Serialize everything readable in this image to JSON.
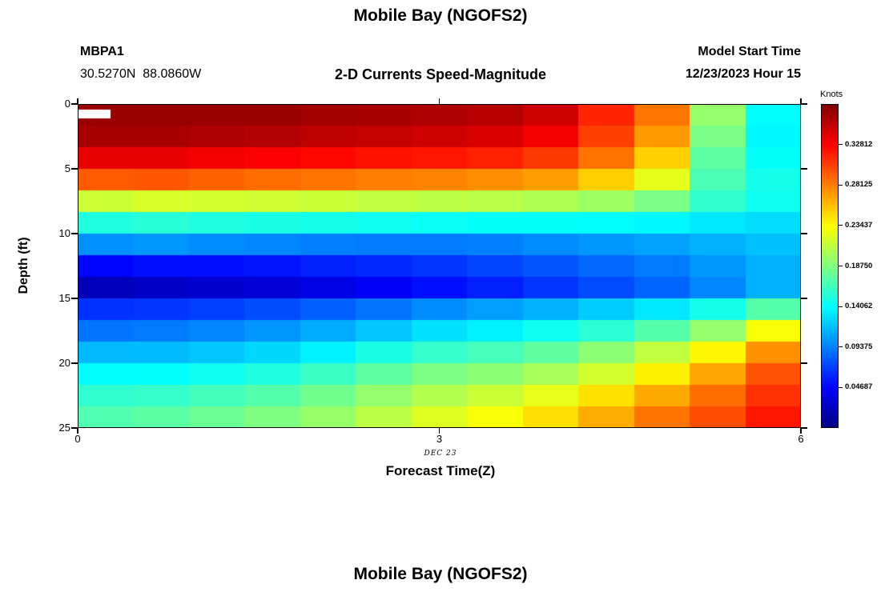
{
  "chart_data": {
    "type": "heatmap",
    "title": "Mobile Bay (NGOFS2)",
    "subtitle": "2-D Currents Speed-Magnitude",
    "station_id": "MBPA1",
    "station_coords": "30.5270N  88.0860W",
    "model_start_label": "Model Start Time",
    "model_start_value": "12/23/2023 Hour 15",
    "xlabel": "Forecast Time(Z)",
    "x_date_label": "DEC 23",
    "ylabel": "Depth (ft)",
    "x_range": [
      0,
      6
    ],
    "x_ticks": [
      0,
      3,
      6
    ],
    "x_hours": [
      0,
      0.5,
      1,
      1.5,
      2,
      2.5,
      3,
      3.5,
      4,
      4.5,
      5,
      5.5,
      6
    ],
    "depth_range": [
      0,
      25
    ],
    "y_ticks": [
      0,
      5,
      10,
      15,
      20,
      25
    ],
    "row_depths_ft": [
      0.8,
      2.5,
      4.2,
      5.8,
      7.5,
      9.2,
      10.8,
      12.5,
      14.2,
      15.8,
      17.5,
      19.2,
      20.8,
      22.5,
      24.2
    ],
    "values_knots": [
      [
        0.365,
        0.365,
        0.365,
        0.365,
        0.362,
        0.36,
        0.358,
        0.355,
        0.345,
        0.315,
        0.285,
        0.195,
        0.14
      ],
      [
        0.36,
        0.36,
        0.358,
        0.356,
        0.352,
        0.35,
        0.346,
        0.342,
        0.332,
        0.305,
        0.272,
        0.185,
        0.138
      ],
      [
        0.336,
        0.336,
        0.332,
        0.33,
        0.326,
        0.322,
        0.32,
        0.316,
        0.308,
        0.286,
        0.252,
        0.175,
        0.142
      ],
      [
        0.295,
        0.296,
        0.292,
        0.288,
        0.286,
        0.282,
        0.28,
        0.276,
        0.27,
        0.252,
        0.225,
        0.168,
        0.148
      ],
      [
        0.215,
        0.22,
        0.218,
        0.216,
        0.214,
        0.212,
        0.21,
        0.208,
        0.205,
        0.198,
        0.185,
        0.158,
        0.146
      ],
      [
        0.152,
        0.155,
        0.152,
        0.15,
        0.148,
        0.146,
        0.144,
        0.142,
        0.142,
        0.14,
        0.138,
        0.132,
        0.128
      ],
      [
        0.1,
        0.102,
        0.098,
        0.096,
        0.094,
        0.092,
        0.092,
        0.094,
        0.098,
        0.102,
        0.106,
        0.112,
        0.118
      ],
      [
        0.048,
        0.052,
        0.052,
        0.054,
        0.058,
        0.062,
        0.066,
        0.072,
        0.078,
        0.085,
        0.092,
        0.102,
        0.112
      ],
      [
        0.022,
        0.026,
        0.03,
        0.032,
        0.038,
        0.044,
        0.052,
        0.058,
        0.066,
        0.074,
        0.084,
        0.096,
        0.112
      ],
      [
        0.065,
        0.066,
        0.07,
        0.075,
        0.082,
        0.09,
        0.098,
        0.105,
        0.112,
        0.122,
        0.132,
        0.148,
        0.172
      ],
      [
        0.09,
        0.092,
        0.096,
        0.102,
        0.11,
        0.12,
        0.13,
        0.136,
        0.146,
        0.156,
        0.172,
        0.195,
        0.232
      ],
      [
        0.115,
        0.116,
        0.12,
        0.126,
        0.136,
        0.15,
        0.16,
        0.166,
        0.176,
        0.192,
        0.212,
        0.238,
        0.275
      ],
      [
        0.14,
        0.141,
        0.146,
        0.152,
        0.162,
        0.175,
        0.186,
        0.192,
        0.202,
        0.218,
        0.24,
        0.268,
        0.298
      ],
      [
        0.158,
        0.16,
        0.165,
        0.172,
        0.182,
        0.195,
        0.206,
        0.215,
        0.226,
        0.245,
        0.266,
        0.288,
        0.31
      ],
      [
        0.17,
        0.174,
        0.18,
        0.187,
        0.196,
        0.21,
        0.222,
        0.232,
        0.246,
        0.265,
        0.286,
        0.3,
        0.32
      ]
    ],
    "missing_patch": {
      "x0": 0.0,
      "y0": 0.017,
      "w": 0.045,
      "h": 0.027
    },
    "colorbar": {
      "label": "Knots",
      "colormap": "jet",
      "vmin": 0,
      "vmax": 0.375,
      "tick_labels": [
        "0.32812",
        "0.28125",
        "0.23437",
        "0.18750",
        "0.14062",
        "0.09375",
        "0.04687"
      ],
      "tick_values": [
        0.328125,
        0.28125,
        0.234375,
        0.1875,
        0.140625,
        0.09375,
        0.046875
      ]
    }
  },
  "footer": {
    "next_chart_title": "Mobile Bay (NGOFS2)"
  }
}
